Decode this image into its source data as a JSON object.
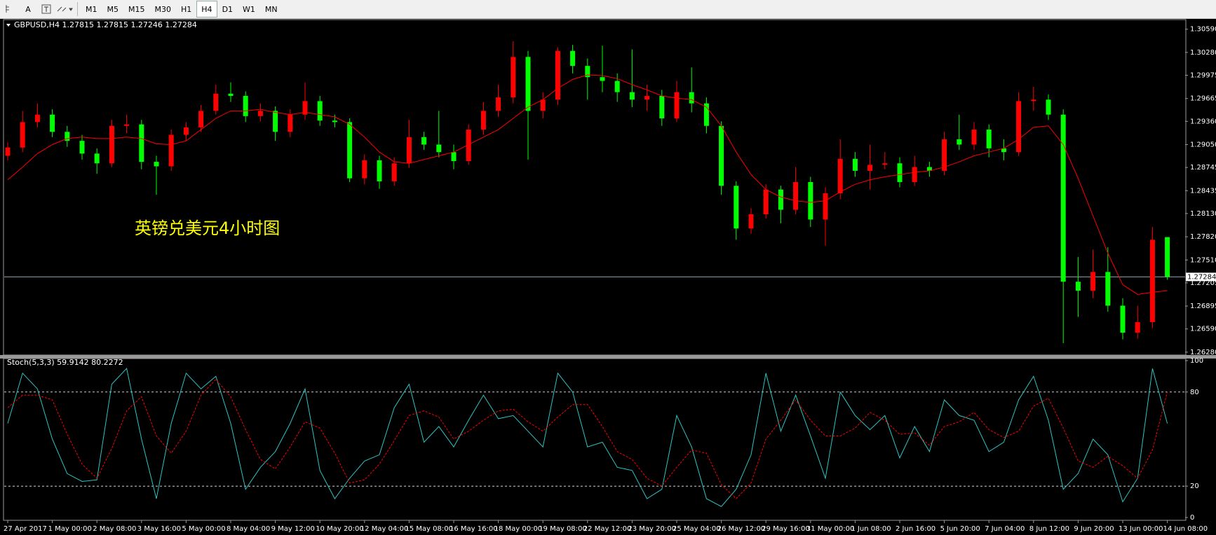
{
  "toolbar": {
    "tools": [
      "A"
    ],
    "timeframes": [
      "M1",
      "M5",
      "M15",
      "M30",
      "H1",
      "H4",
      "D1",
      "W1",
      "MN"
    ],
    "active": "H4"
  },
  "chart_data": [
    {
      "type": "candlestick",
      "header": "GBPUSD,H4  1.27815 1.27815 1.27246 1.27284",
      "annotation": "英镑兑美元4小时图",
      "up_color": "#ff0000",
      "down_color": "#00ff00",
      "categories": [
        "27 Apr 2017",
        null,
        null,
        "1 May 00:00",
        null,
        null,
        "2 May 08:00",
        null,
        null,
        "3 May 16:00",
        null,
        null,
        "5 May 00:00",
        null,
        null,
        "8 May 04:00",
        null,
        null,
        "9 May 12:00",
        null,
        null,
        "10 May 20:00",
        null,
        null,
        "12 May 04:00",
        null,
        null,
        "15 May 08:00",
        null,
        null,
        "16 May 16:00",
        null,
        null,
        "18 May 00:00",
        null,
        null,
        "19 May 08:00",
        null,
        null,
        "22 May 12:00",
        null,
        null,
        "23 May 20:00",
        null,
        null,
        "25 May 04:00",
        null,
        null,
        "26 May 12:00",
        null,
        null,
        "29 May 16:00",
        null,
        null,
        "31 May 00:00",
        null,
        null,
        "1 Jun 08:00",
        null,
        null,
        "2 Jun 16:00",
        null,
        null,
        "5 Jun 20:00",
        null,
        null,
        "7 Jun 04:00",
        null,
        null,
        "8 Jun 12:00",
        null,
        null,
        "9 Jun 20:00",
        null,
        null,
        "13 Jun 00:00",
        null,
        null,
        "14 Jun 08:00"
      ],
      "candles": [
        [
          1.289,
          1.2908,
          1.2884,
          1.2901
        ],
        [
          1.2901,
          1.295,
          1.2895,
          1.2935
        ],
        [
          1.2935,
          1.296,
          1.2928,
          1.2945
        ],
        [
          1.2945,
          1.2952,
          1.2915,
          1.2922
        ],
        [
          1.2922,
          1.293,
          1.2902,
          1.291
        ],
        [
          1.291,
          1.2918,
          1.2885,
          1.2893
        ],
        [
          1.2893,
          1.29,
          1.2866,
          1.288
        ],
        [
          1.288,
          1.2938,
          1.2875,
          1.293
        ],
        [
          1.293,
          1.2945,
          1.292,
          1.2932
        ],
        [
          1.2932,
          1.2938,
          1.2872,
          1.2882
        ],
        [
          1.2882,
          1.289,
          1.2838,
          1.2876
        ],
        [
          1.2876,
          1.2925,
          1.287,
          1.2918
        ],
        [
          1.2918,
          1.2935,
          1.291,
          1.2928
        ],
        [
          1.2928,
          1.2958,
          1.2922,
          1.295
        ],
        [
          1.295,
          1.2985,
          1.2945,
          1.2973
        ],
        [
          1.2973,
          1.2988,
          1.2962,
          1.297
        ],
        [
          1.297,
          1.2976,
          1.2935,
          1.2943
        ],
        [
          1.2943,
          1.296,
          1.2936,
          1.295
        ],
        [
          1.295,
          1.2956,
          1.291,
          1.2922
        ],
        [
          1.2922,
          1.2952,
          1.2915,
          1.2945
        ],
        [
          1.2945,
          1.2988,
          1.2938,
          1.2963
        ],
        [
          1.2963,
          1.297,
          1.293,
          1.2937
        ],
        [
          1.2937,
          1.2945,
          1.2928,
          1.2935
        ],
        [
          1.2935,
          1.294,
          1.2855,
          1.286
        ],
        [
          1.286,
          1.2892,
          1.2852,
          1.2884
        ],
        [
          1.2884,
          1.289,
          1.2846,
          1.2856
        ],
        [
          1.2856,
          1.2888,
          1.285,
          1.288
        ],
        [
          1.288,
          1.2938,
          1.2874,
          1.2915
        ],
        [
          1.2915,
          1.2922,
          1.2898,
          1.2905
        ],
        [
          1.2905,
          1.295,
          1.2888,
          1.2895
        ],
        [
          1.2895,
          1.2905,
          1.2872,
          1.2883
        ],
        [
          1.2883,
          1.2932,
          1.2878,
          1.2925
        ],
        [
          1.2925,
          1.2962,
          1.2918,
          1.295
        ],
        [
          1.295,
          1.2985,
          1.2942,
          1.2968
        ],
        [
          1.2968,
          1.3043,
          1.296,
          1.3022
        ],
        [
          1.3022,
          1.303,
          1.2885,
          1.295
        ],
        [
          1.295,
          1.2975,
          1.294,
          1.2965
        ],
        [
          1.2965,
          1.3035,
          1.2958,
          1.303
        ],
        [
          1.303,
          1.3038,
          1.3,
          1.301
        ],
        [
          1.301,
          1.302,
          1.2965,
          1.2995
        ],
        [
          1.2995,
          1.3037,
          1.2975,
          1.299
        ],
        [
          1.299,
          1.3,
          1.2962,
          1.2975
        ],
        [
          1.2975,
          1.3032,
          1.2955,
          1.2965
        ],
        [
          1.2965,
          1.2985,
          1.295,
          1.297
        ],
        [
          1.297,
          1.2978,
          1.293,
          1.294
        ],
        [
          1.294,
          1.299,
          1.2935,
          1.2975
        ],
        [
          1.2975,
          1.3008,
          1.2948,
          1.296
        ],
        [
          1.296,
          1.2968,
          1.292,
          1.293
        ],
        [
          1.293,
          1.2936,
          1.2838,
          1.285
        ],
        [
          1.285,
          1.2856,
          1.2778,
          1.2793
        ],
        [
          1.2793,
          1.282,
          1.2786,
          1.2812
        ],
        [
          1.2812,
          1.2852,
          1.2806,
          1.2845
        ],
        [
          1.2845,
          1.285,
          1.28,
          1.2818
        ],
        [
          1.2818,
          1.2875,
          1.2812,
          1.2855
        ],
        [
          1.2855,
          1.2862,
          1.2795,
          1.2805
        ],
        [
          1.2805,
          1.2848,
          1.277,
          1.284
        ],
        [
          1.284,
          1.2912,
          1.2832,
          1.2886
        ],
        [
          1.2886,
          1.2895,
          1.2862,
          1.287
        ],
        [
          1.287,
          1.2905,
          1.2845,
          1.2878
        ],
        [
          1.2878,
          1.2895,
          1.2872,
          1.288
        ],
        [
          1.288,
          1.2888,
          1.2848,
          1.2855
        ],
        [
          1.2855,
          1.289,
          1.285,
          1.2875
        ],
        [
          1.2875,
          1.2882,
          1.2862,
          1.287
        ],
        [
          1.287,
          1.2922,
          1.2864,
          1.2912
        ],
        [
          1.2912,
          1.2945,
          1.2898,
          1.2905
        ],
        [
          1.2905,
          1.2935,
          1.2898,
          1.2925
        ],
        [
          1.2925,
          1.2932,
          1.2888,
          1.29
        ],
        [
          1.29,
          1.2912,
          1.2884,
          1.2895
        ],
        [
          1.2895,
          1.2975,
          1.289,
          1.2963
        ],
        [
          1.2963,
          1.2982,
          1.295,
          1.2965
        ],
        [
          1.2965,
          1.2972,
          1.2938,
          1.2945
        ],
        [
          1.2945,
          1.2952,
          1.264,
          1.2722
        ],
        [
          1.2722,
          1.2755,
          1.2675,
          1.271
        ],
        [
          1.271,
          1.2765,
          1.27,
          1.2735
        ],
        [
          1.2735,
          1.2768,
          1.2682,
          1.269
        ],
        [
          1.269,
          1.27,
          1.2645,
          1.2654
        ],
        [
          1.2654,
          1.269,
          1.2646,
          1.2668
        ],
        [
          1.2668,
          1.2795,
          1.266,
          1.2778
        ],
        [
          1.27815,
          1.27815,
          1.27246,
          1.27284
        ]
      ],
      "ma": {
        "color": "#ff0000",
        "values": [
          1.2858,
          1.2875,
          1.2893,
          1.2905,
          1.2913,
          1.2915,
          1.2913,
          1.2913,
          1.2915,
          1.2913,
          1.2906,
          1.2905,
          1.291,
          1.2925,
          1.294,
          1.295,
          1.295,
          1.2952,
          1.2948,
          1.2945,
          1.2948,
          1.2945,
          1.2942,
          1.2932,
          1.2915,
          1.2895,
          1.2882,
          1.288,
          1.2885,
          1.289,
          1.2895,
          1.2905,
          1.2915,
          1.2925,
          1.294,
          1.2955,
          1.2965,
          1.298,
          1.2992,
          1.2998,
          1.2997,
          1.2993,
          1.2985,
          1.2978,
          1.297,
          1.2967,
          1.2965,
          1.2955,
          1.293,
          1.2895,
          1.2865,
          1.2845,
          1.2835,
          1.283,
          1.2828,
          1.283,
          1.2842,
          1.2852,
          1.2858,
          1.2862,
          1.2865,
          1.2868,
          1.287,
          1.2875,
          1.2882,
          1.289,
          1.2895,
          1.29,
          1.2912,
          1.2928,
          1.293,
          1.2905,
          1.286,
          1.281,
          1.276,
          1.2718,
          1.2705,
          1.2708,
          1.271
        ]
      },
      "ylim": [
        1.2626,
        1.3069
      ],
      "yticks": [
        {
          "value": 1.3059,
          "label": "1.30590"
        },
        {
          "value": 1.3028,
          "label": "1.30280"
        },
        1.29975,
        1.29665,
        {
          "value": 1.2936,
          "label": "1.29360"
        },
        {
          "value": 1.2905,
          "label": "1.29050"
        },
        1.28745,
        1.28435,
        {
          "value": 1.2813,
          "label": "1.28130"
        },
        {
          "value": 1.2782,
          "label": "1.27820"
        },
        {
          "value": 1.2751,
          "label": "1.27510"
        },
        1.27205,
        1.26895,
        {
          "value": 1.2659,
          "label": "1.26590"
        },
        {
          "value": 1.2628,
          "label": "1.26280"
        }
      ],
      "bid": 1.27284,
      "bid_color": "#8fa3b8"
    },
    {
      "type": "line",
      "title": "Stoch(5,3,3) 59.9142 80.2272",
      "series": [
        {
          "color": "#2ec4c4",
          "dashed": false,
          "values": [
            60,
            92,
            82,
            50,
            28,
            23,
            24,
            85,
            95,
            50,
            12,
            60,
            92,
            82,
            90,
            60,
            18,
            32,
            42,
            60,
            82,
            30,
            12,
            25,
            36,
            40,
            70,
            85,
            48,
            58,
            45,
            62,
            78,
            63,
            65,
            55,
            45,
            92,
            80,
            45,
            48,
            32,
            30,
            12,
            18,
            65,
            45,
            12,
            7,
            18,
            40,
            92,
            55,
            78,
            52,
            25,
            80,
            65,
            56,
            65,
            38,
            58,
            42,
            75,
            65,
            62,
            42,
            48,
            75,
            90,
            62,
            18,
            28,
            50,
            40,
            10,
            25,
            95,
            59.9142
          ]
        },
        {
          "color": "#ff0000",
          "dashed": true,
          "values": [
            70,
            78,
            78,
            75,
            53,
            34,
            25,
            44,
            68,
            77,
            52,
            41,
            55,
            78,
            88,
            77,
            56,
            37,
            31,
            45,
            61,
            57,
            41,
            22,
            24,
            34,
            49,
            65,
            68,
            64,
            50,
            55,
            62,
            68,
            69,
            61,
            55,
            64,
            72,
            72,
            58,
            42,
            37,
            25,
            20,
            32,
            43,
            41,
            21,
            12,
            22,
            50,
            62,
            75,
            62,
            52,
            52,
            57,
            67,
            62,
            53,
            54,
            46,
            58,
            61,
            67,
            56,
            51,
            55,
            71,
            76,
            57,
            36,
            32,
            39,
            33,
            25,
            43,
            80.2272
          ]
        }
      ],
      "ylim": [
        0,
        100
      ],
      "yticks": [
        100,
        80,
        20,
        0
      ],
      "levels": [
        80,
        20
      ]
    }
  ]
}
